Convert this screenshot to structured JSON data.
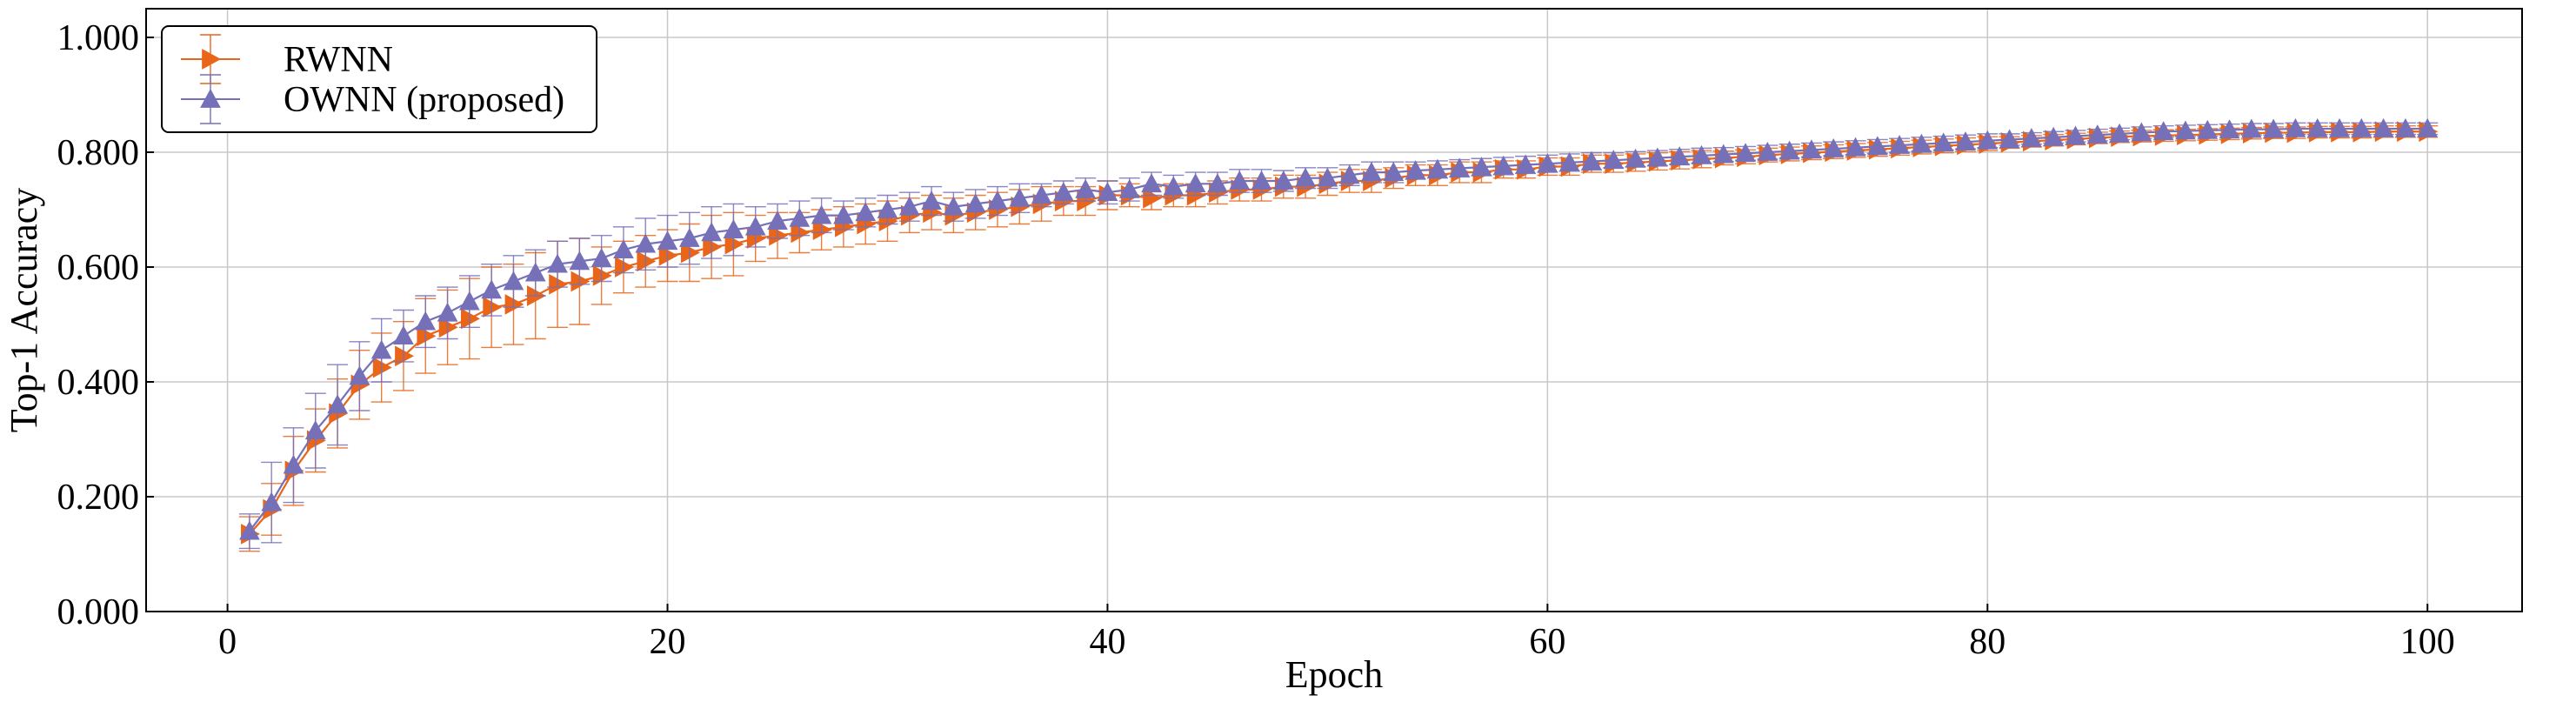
{
  "chart_data": {
    "type": "line",
    "title": "",
    "xlabel": "Epoch",
    "ylabel": "Top-1 Accuracy",
    "xlim": [
      -3.7,
      104.3
    ],
    "ylim": [
      0.0,
      1.05
    ],
    "xticks": [
      0,
      20,
      40,
      60,
      80,
      100
    ],
    "xtick_labels": [
      "0",
      "20",
      "40",
      "60",
      "80",
      "100"
    ],
    "yticks": [
      0.0,
      0.2,
      0.4,
      0.6,
      0.8,
      1.0
    ],
    "ytick_labels": [
      "0.000",
      "0.200",
      "0.400",
      "0.600",
      "0.800",
      "1.000"
    ],
    "grid": true,
    "legend_position": "top-left",
    "x": [
      1,
      2,
      3,
      4,
      5,
      6,
      7,
      8,
      9,
      10,
      11,
      12,
      13,
      14,
      15,
      16,
      17,
      18,
      19,
      20,
      21,
      22,
      23,
      24,
      25,
      26,
      27,
      28,
      29,
      30,
      31,
      32,
      33,
      34,
      35,
      36,
      37,
      38,
      39,
      40,
      41,
      42,
      43,
      44,
      45,
      46,
      47,
      48,
      49,
      50,
      51,
      52,
      53,
      54,
      55,
      56,
      57,
      58,
      59,
      60,
      61,
      62,
      63,
      64,
      65,
      66,
      67,
      68,
      69,
      70,
      71,
      72,
      73,
      74,
      75,
      76,
      77,
      78,
      79,
      80,
      81,
      82,
      83,
      84,
      85,
      86,
      87,
      88,
      89,
      90,
      91,
      92,
      93,
      94,
      95,
      96,
      97,
      98,
      99,
      100
    ],
    "series": [
      {
        "name": "RWNN",
        "color": "#E8651A",
        "marker": "triangle-right",
        "values": [
          0.135,
          0.178,
          0.245,
          0.298,
          0.345,
          0.395,
          0.425,
          0.445,
          0.48,
          0.495,
          0.51,
          0.53,
          0.535,
          0.55,
          0.57,
          0.575,
          0.585,
          0.6,
          0.61,
          0.62,
          0.625,
          0.635,
          0.64,
          0.65,
          0.655,
          0.66,
          0.665,
          0.67,
          0.675,
          0.68,
          0.69,
          0.695,
          0.69,
          0.695,
          0.7,
          0.705,
          0.71,
          0.715,
          0.715,
          0.725,
          0.725,
          0.72,
          0.725,
          0.725,
          0.73,
          0.735,
          0.735,
          0.74,
          0.74,
          0.745,
          0.75,
          0.75,
          0.755,
          0.76,
          0.76,
          0.765,
          0.765,
          0.77,
          0.77,
          0.775,
          0.775,
          0.78,
          0.78,
          0.782,
          0.784,
          0.786,
          0.788,
          0.79,
          0.792,
          0.795,
          0.797,
          0.799,
          0.801,
          0.803,
          0.805,
          0.807,
          0.809,
          0.811,
          0.813,
          0.815,
          0.817,
          0.819,
          0.821,
          0.823,
          0.825,
          0.827,
          0.828,
          0.829,
          0.83,
          0.831,
          0.832,
          0.833,
          0.834,
          0.834,
          0.835,
          0.835,
          0.835,
          0.836,
          0.836,
          0.836
        ],
        "errors": [
          0.03,
          0.045,
          0.06,
          0.055,
          0.06,
          0.06,
          0.06,
          0.06,
          0.065,
          0.065,
          0.07,
          0.07,
          0.07,
          0.075,
          0.075,
          0.075,
          0.05,
          0.045,
          0.045,
          0.045,
          0.05,
          0.055,
          0.055,
          0.04,
          0.04,
          0.035,
          0.035,
          0.035,
          0.035,
          0.035,
          0.03,
          0.03,
          0.03,
          0.03,
          0.03,
          0.03,
          0.03,
          0.025,
          0.025,
          0.025,
          0.02,
          0.02,
          0.02,
          0.02,
          0.02,
          0.02,
          0.02,
          0.02,
          0.02,
          0.02,
          0.02,
          0.02,
          0.018,
          0.018,
          0.018,
          0.018,
          0.018,
          0.015,
          0.015,
          0.015,
          0.015,
          0.015,
          0.015,
          0.015,
          0.015,
          0.015,
          0.015,
          0.012,
          0.012,
          0.012,
          0.012,
          0.012,
          0.012,
          0.012,
          0.012,
          0.012,
          0.012,
          0.012,
          0.012,
          0.012,
          0.01,
          0.01,
          0.01,
          0.01,
          0.01,
          0.01,
          0.01,
          0.01,
          0.01,
          0.01,
          0.01,
          0.01,
          0.01,
          0.01,
          0.01,
          0.01,
          0.01,
          0.01,
          0.01,
          0.01
        ]
      },
      {
        "name": "OWNN (proposed)",
        "color": "#7570B8",
        "marker": "triangle-up",
        "values": [
          0.14,
          0.19,
          0.255,
          0.315,
          0.36,
          0.41,
          0.455,
          0.48,
          0.505,
          0.52,
          0.54,
          0.56,
          0.575,
          0.59,
          0.605,
          0.61,
          0.615,
          0.63,
          0.64,
          0.645,
          0.65,
          0.66,
          0.665,
          0.67,
          0.68,
          0.685,
          0.69,
          0.69,
          0.695,
          0.7,
          0.705,
          0.715,
          0.705,
          0.71,
          0.715,
          0.72,
          0.725,
          0.73,
          0.735,
          0.73,
          0.735,
          0.745,
          0.74,
          0.745,
          0.745,
          0.75,
          0.75,
          0.75,
          0.755,
          0.755,
          0.76,
          0.765,
          0.765,
          0.768,
          0.77,
          0.772,
          0.774,
          0.776,
          0.778,
          0.78,
          0.782,
          0.784,
          0.786,
          0.788,
          0.79,
          0.792,
          0.794,
          0.796,
          0.798,
          0.8,
          0.802,
          0.804,
          0.806,
          0.808,
          0.81,
          0.812,
          0.814,
          0.816,
          0.818,
          0.82,
          0.822,
          0.824,
          0.826,
          0.828,
          0.83,
          0.832,
          0.834,
          0.836,
          0.837,
          0.838,
          0.839,
          0.84,
          0.84,
          0.841,
          0.841,
          0.841,
          0.841,
          0.841,
          0.841,
          0.841
        ],
        "errors": [
          0.03,
          0.07,
          0.065,
          0.065,
          0.07,
          0.06,
          0.055,
          0.045,
          0.045,
          0.045,
          0.045,
          0.045,
          0.045,
          0.04,
          0.04,
          0.04,
          0.04,
          0.04,
          0.045,
          0.045,
          0.045,
          0.045,
          0.045,
          0.035,
          0.03,
          0.03,
          0.03,
          0.025,
          0.025,
          0.025,
          0.025,
          0.025,
          0.025,
          0.025,
          0.025,
          0.025,
          0.02,
          0.02,
          0.02,
          0.02,
          0.02,
          0.02,
          0.02,
          0.02,
          0.02,
          0.02,
          0.02,
          0.018,
          0.018,
          0.018,
          0.018,
          0.018,
          0.018,
          0.015,
          0.015,
          0.015,
          0.015,
          0.015,
          0.015,
          0.015,
          0.015,
          0.015,
          0.013,
          0.013,
          0.013,
          0.013,
          0.013,
          0.012,
          0.012,
          0.012,
          0.012,
          0.012,
          0.012,
          0.012,
          0.012,
          0.012,
          0.012,
          0.012,
          0.012,
          0.012,
          0.01,
          0.01,
          0.01,
          0.01,
          0.01,
          0.01,
          0.01,
          0.01,
          0.01,
          0.01,
          0.01,
          0.01,
          0.01,
          0.01,
          0.01,
          0.01,
          0.01,
          0.01,
          0.01,
          0.01
        ]
      }
    ]
  }
}
